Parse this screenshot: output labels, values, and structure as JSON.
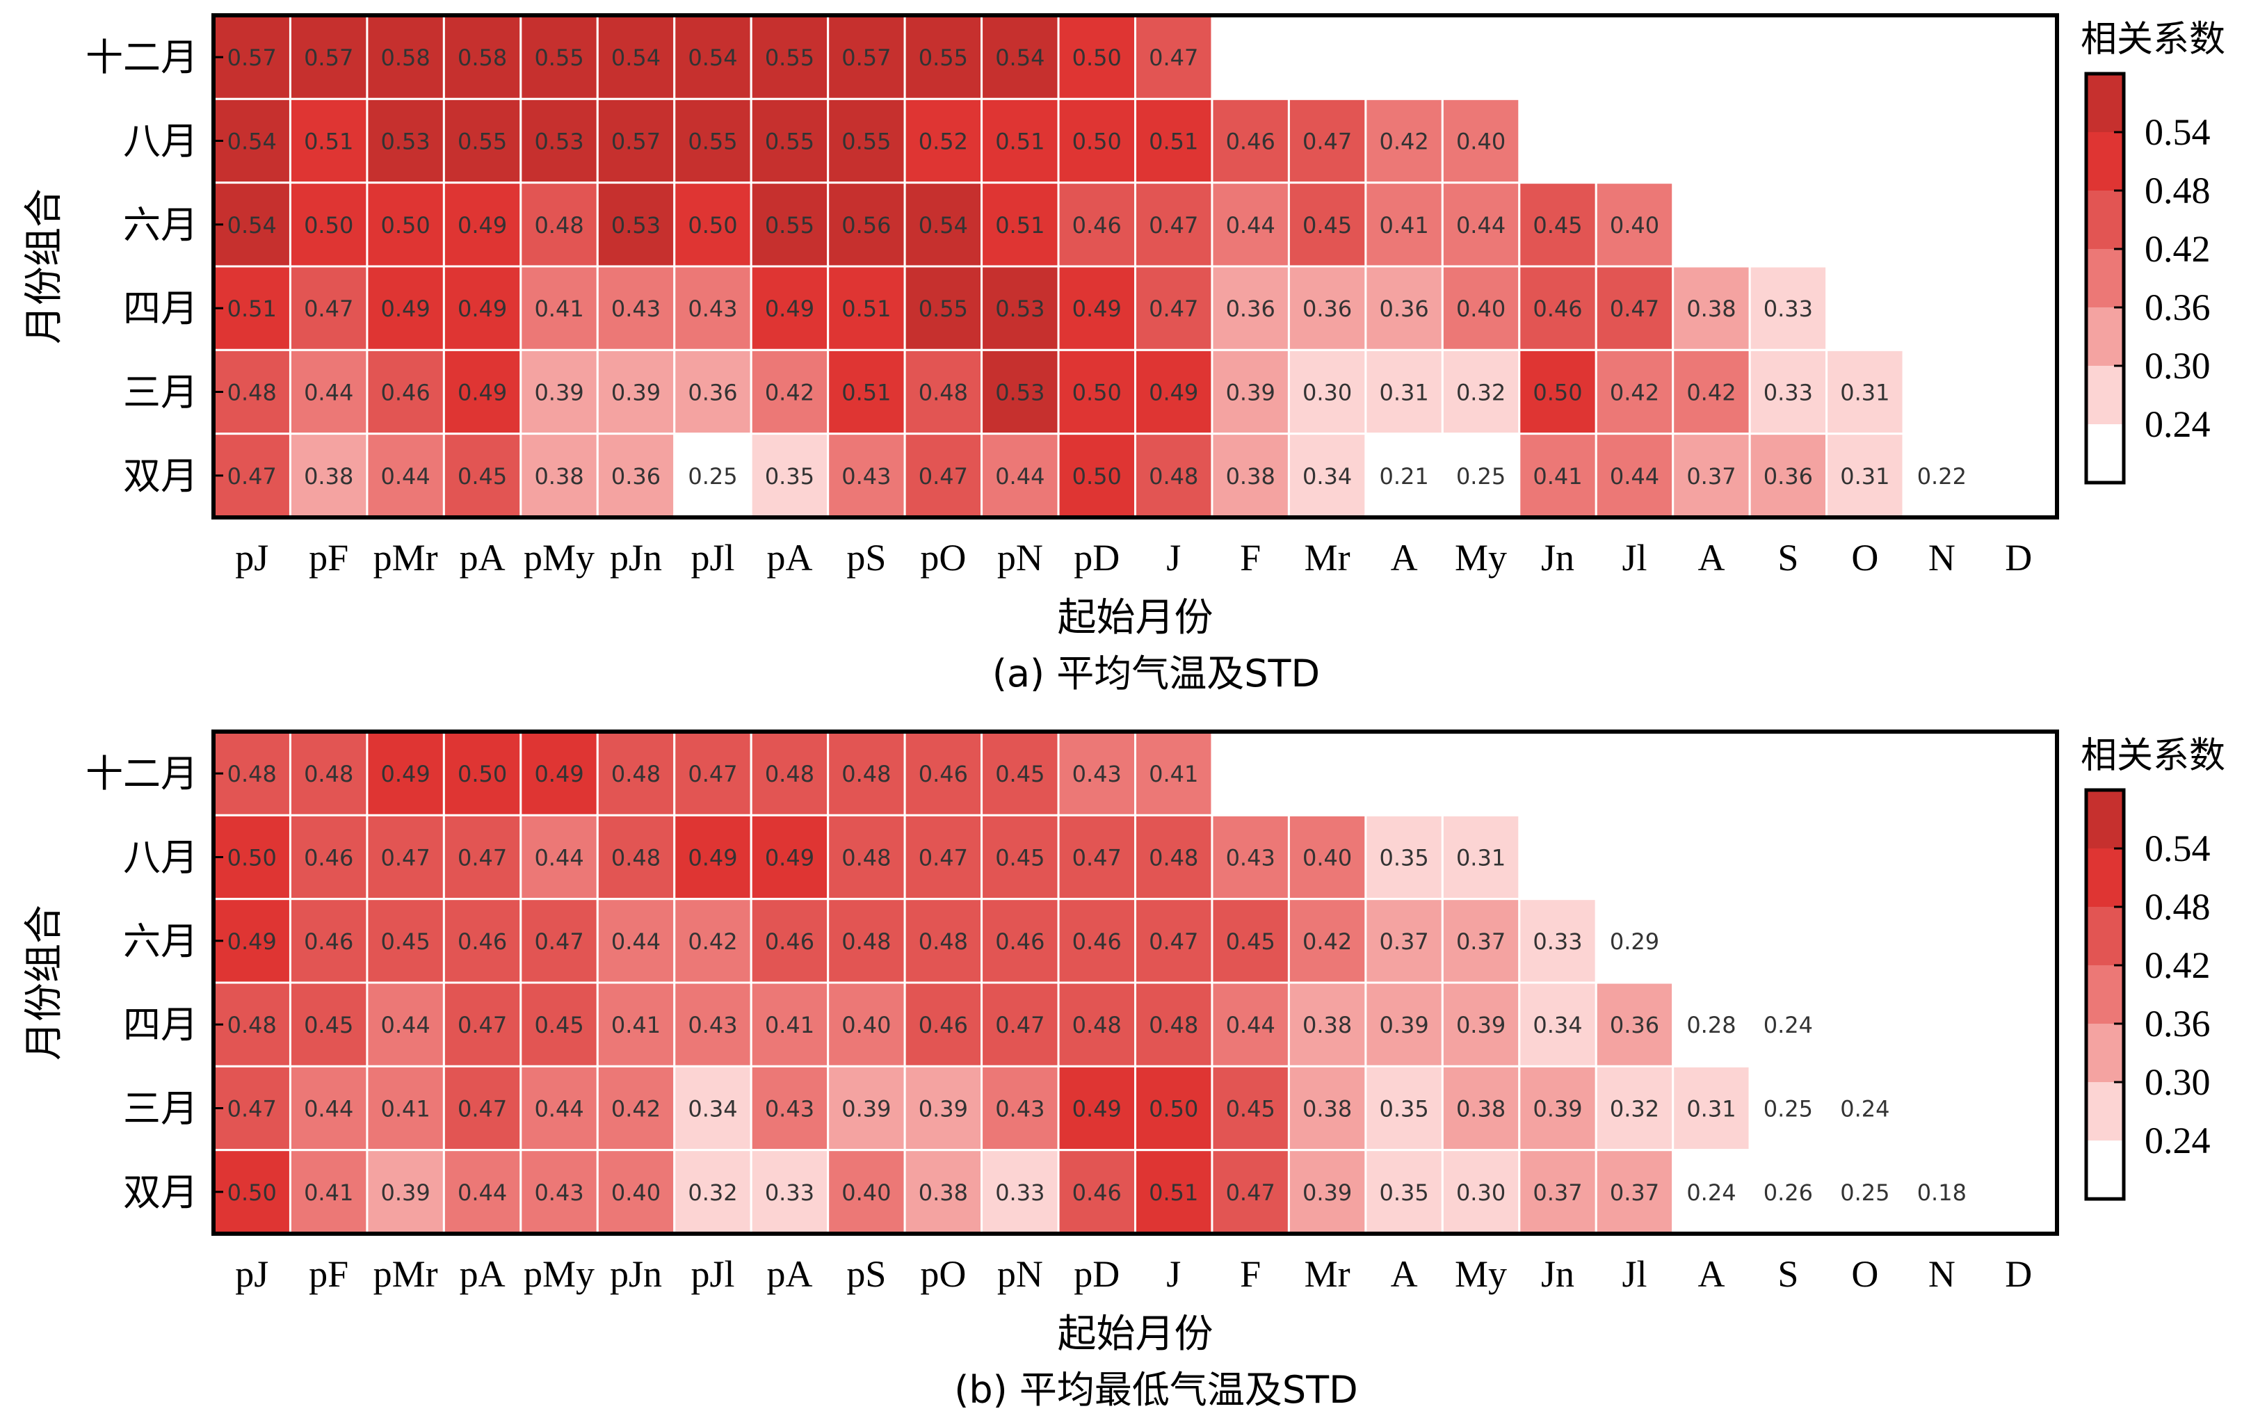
{
  "chart_data": [
    {
      "type": "heatmap",
      "caption": "(a) 平均气温及STD",
      "xlabel": "起始月份",
      "ylabel": "月份组合",
      "colorbar_title": "相关系数",
      "colorbar_ticks": [
        "0.54",
        "0.48",
        "0.42",
        "0.36",
        "0.30",
        "0.24"
      ],
      "x_categories": [
        "pJ",
        "pF",
        "pMr",
        "pA",
        "pMy",
        "pJn",
        "pJl",
        "pA",
        "pS",
        "pO",
        "pN",
        "pD",
        "J",
        "F",
        "Mr",
        "A",
        "My",
        "Jn",
        "Jl",
        "A",
        "S",
        "O",
        "N",
        "D"
      ],
      "y_categories": [
        "十二月",
        "八月",
        "六月",
        "四月",
        "三月",
        "双月"
      ],
      "rows": [
        [
          "0.57",
          "0.57",
          "0.58",
          "0.58",
          "0.55",
          "0.54",
          "0.54",
          "0.55",
          "0.57",
          "0.55",
          "0.54",
          "0.50",
          "0.47"
        ],
        [
          "0.54",
          "0.51",
          "0.53",
          "0.55",
          "0.53",
          "0.57",
          "0.55",
          "0.55",
          "0.55",
          "0.52",
          "0.51",
          "0.50",
          "0.51",
          "0.46",
          "0.47",
          "0.42",
          "0.40"
        ],
        [
          "0.54",
          "0.50",
          "0.50",
          "0.49",
          "0.48",
          "0.53",
          "0.50",
          "0.55",
          "0.56",
          "0.54",
          "0.51",
          "0.46",
          "0.47",
          "0.44",
          "0.45",
          "0.41",
          "0.44",
          "0.45",
          "0.40"
        ],
        [
          "0.51",
          "0.47",
          "0.49",
          "0.49",
          "0.41",
          "0.43",
          "0.43",
          "0.49",
          "0.51",
          "0.55",
          "0.53",
          "0.49",
          "0.47",
          "0.36",
          "0.36",
          "0.36",
          "0.40",
          "0.46",
          "0.47",
          "0.38",
          "0.33"
        ],
        [
          "0.48",
          "0.44",
          "0.46",
          "0.49",
          "0.39",
          "0.39",
          "0.36",
          "0.42",
          "0.51",
          "0.48",
          "0.53",
          "0.50",
          "0.49",
          "0.39",
          "0.30",
          "0.31",
          "0.32",
          "0.50",
          "0.42",
          "0.42",
          "0.33",
          "0.31"
        ],
        [
          "0.47",
          "0.38",
          "0.44",
          "0.45",
          "0.38",
          "0.36",
          "0.25",
          "0.35",
          "0.43",
          "0.47",
          "0.44",
          "0.50",
          "0.48",
          "0.38",
          "0.34",
          "0.21",
          "0.25",
          "0.41",
          "0.44",
          "0.37",
          "0.36",
          "0.31",
          "0.22"
        ]
      ]
    },
    {
      "type": "heatmap",
      "caption": "(b) 平均最低气温及STD",
      "xlabel": "起始月份",
      "ylabel": "月份组合",
      "colorbar_title": "相关系数",
      "colorbar_ticks": [
        "0.54",
        "0.48",
        "0.42",
        "0.36",
        "0.30",
        "0.24"
      ],
      "x_categories": [
        "pJ",
        "pF",
        "pMr",
        "pA",
        "pMy",
        "pJn",
        "pJl",
        "pA",
        "pS",
        "pO",
        "pN",
        "pD",
        "J",
        "F",
        "Mr",
        "A",
        "My",
        "Jn",
        "Jl",
        "A",
        "S",
        "O",
        "N",
        "D"
      ],
      "y_categories": [
        "十二月",
        "八月",
        "六月",
        "四月",
        "三月",
        "双月"
      ],
      "rows": [
        [
          "0.48",
          "0.48",
          "0.49",
          "0.50",
          "0.49",
          "0.48",
          "0.47",
          "0.48",
          "0.48",
          "0.46",
          "0.45",
          "0.43",
          "0.41"
        ],
        [
          "0.50",
          "0.46",
          "0.47",
          "0.47",
          "0.44",
          "0.48",
          "0.49",
          "0.49",
          "0.48",
          "0.47",
          "0.45",
          "0.47",
          "0.48",
          "0.43",
          "0.40",
          "0.35",
          "0.31"
        ],
        [
          "0.49",
          "0.46",
          "0.45",
          "0.46",
          "0.47",
          "0.44",
          "0.42",
          "0.46",
          "0.48",
          "0.48",
          "0.46",
          "0.46",
          "0.47",
          "0.45",
          "0.42",
          "0.37",
          "0.37",
          "0.33",
          "0.29"
        ],
        [
          "0.48",
          "0.45",
          "0.44",
          "0.47",
          "0.45",
          "0.41",
          "0.43",
          "0.41",
          "0.40",
          "0.46",
          "0.47",
          "0.48",
          "0.48",
          "0.44",
          "0.38",
          "0.39",
          "0.39",
          "0.34",
          "0.36",
          "0.28",
          "0.24"
        ],
        [
          "0.47",
          "0.44",
          "0.41",
          "0.47",
          "0.44",
          "0.42",
          "0.34",
          "0.43",
          "0.39",
          "0.39",
          "0.43",
          "0.49",
          "0.50",
          "0.45",
          "0.38",
          "0.35",
          "0.38",
          "0.39",
          "0.32",
          "0.31",
          "0.25",
          "0.24"
        ],
        [
          "0.50",
          "0.41",
          "0.39",
          "0.44",
          "0.43",
          "0.40",
          "0.32",
          "0.33",
          "0.40",
          "0.38",
          "0.33",
          "0.46",
          "0.51",
          "0.47",
          "0.39",
          "0.35",
          "0.30",
          "0.37",
          "0.37",
          "0.24",
          "0.26",
          "0.25",
          "0.18"
        ]
      ]
    }
  ],
  "colors": {
    "bins": [
      "#ffffff",
      "#fcd4d3",
      "#f4a3a1",
      "#ec7876",
      "#e25553",
      "#df3533",
      "#c6302e"
    ]
  }
}
